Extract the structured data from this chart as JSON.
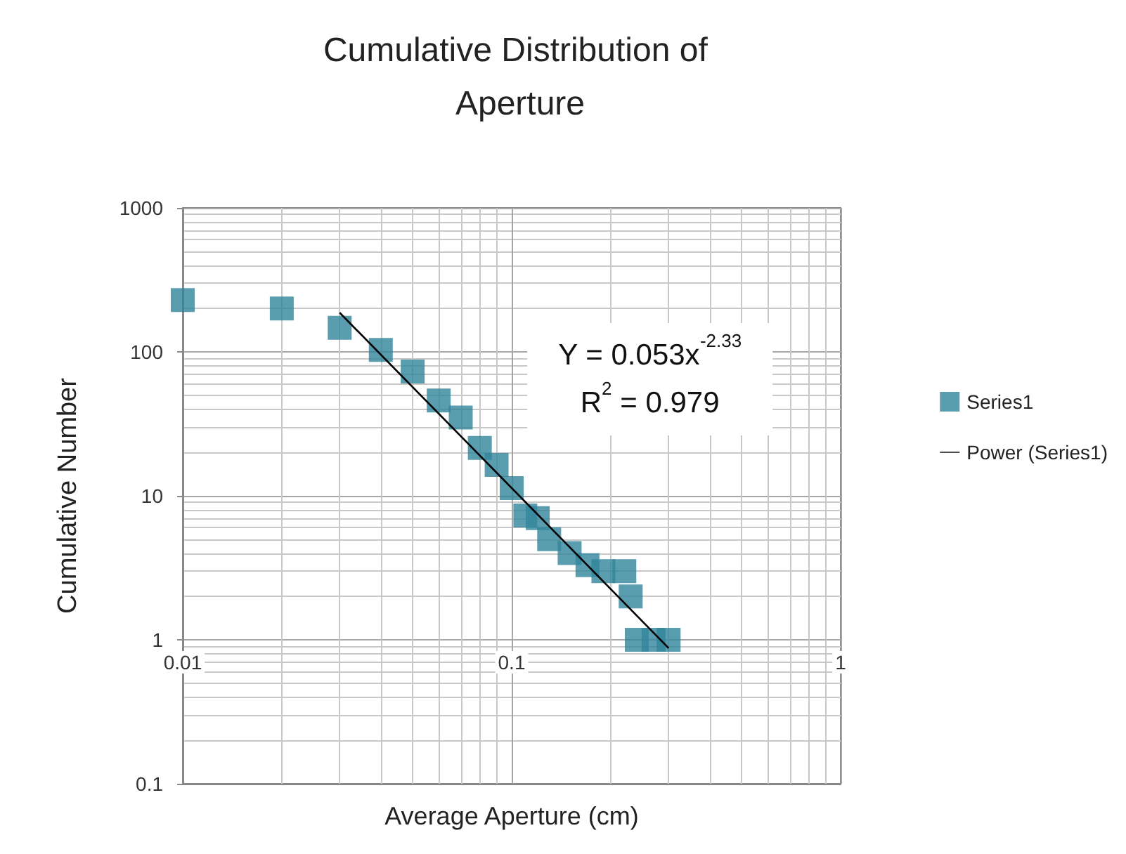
{
  "chart_data": {
    "type": "scatter",
    "title": "Cumulative Distribution of Aperture",
    "xlabel": "Average Aperture (cm)",
    "ylabel": "Cumulative Number",
    "log": "xy",
    "grid": true,
    "legend": "right",
    "marker": "square",
    "xlim": [
      0.01,
      1
    ],
    "xticks": [
      0.01,
      0.1,
      1
    ],
    "ylim": [
      0.1,
      1000
    ],
    "yticks": [
      0.1,
      1,
      10,
      100,
      1000
    ],
    "annotations": [
      "Y = 0.053x$^{-2.33}$",
      "R$^{2}$ = 0.979"
    ],
    "series": [
      {
        "name": "Series1",
        "color": "#31849b",
        "x": [
          0.01,
          0.02,
          0.03,
          0.04,
          0.05,
          0.06,
          0.07,
          0.08,
          0.09,
          0.1,
          0.11,
          0.12,
          0.13,
          0.15,
          0.17,
          0.19,
          0.22,
          0.23,
          0.24,
          0.27,
          0.3
        ],
        "values": [
          229,
          200,
          147,
          103,
          73,
          46,
          35,
          21.5,
          16.4,
          11.3,
          7.3,
          7,
          5,
          4,
          3.3,
          3,
          3,
          2,
          1,
          1,
          1
        ]
      },
      {
        "name": "Power (Series1)",
        "type": "line",
        "color": "#000000",
        "marker": "none",
        "line_style": "solid",
        "x": [
          0.03,
          0.3
        ],
        "values": [
          187,
          0.876
        ]
      }
    ]
  }
}
